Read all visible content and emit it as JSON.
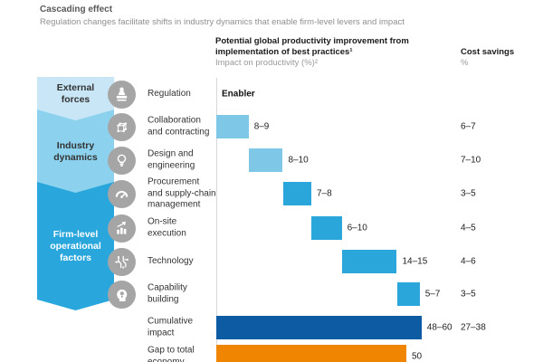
{
  "header": {
    "title": "Cascading effect",
    "subtitle": "Regulation changes facilitate shifts in industry dynamics that enable firm-level levers and impact"
  },
  "columns": {
    "productivity": {
      "title_line1": "Potential global productivity improvement from",
      "title_line2": "implementation of best practices¹",
      "subtitle": "Impact on productivity (%)²"
    },
    "cost": {
      "title": "Cost savings",
      "subtitle": "%"
    }
  },
  "groups": [
    {
      "label": "External forces"
    },
    {
      "label": "Industry dynamics"
    },
    {
      "label": "Firm-level operational factors"
    }
  ],
  "palette": {
    "light": "#7EC7E6",
    "medium": "#2BA6DA",
    "dark": "#0D5BA3",
    "orange": "#F08502",
    "group_external": "#C8E6F5",
    "group_industry": "#8CD2EE",
    "group_firm": "#29A7DC",
    "icon_gray": "#A5A5A5"
  },
  "rows": [
    {
      "label": "Regulation",
      "label_lines": [
        "Regulation"
      ],
      "icon": "stamp-icon",
      "value_label": "Enabler",
      "cost": ""
    },
    {
      "label": "Collaboration and contracting",
      "label_lines": [
        "Collaboration",
        "and contracting"
      ],
      "icon": "network-cube-icon",
      "value_label": "8–9",
      "bar": {
        "start": 0,
        "value": 8.5,
        "tone": "light"
      },
      "cost": "6–7"
    },
    {
      "label": "Design and engineering",
      "label_lines": [
        "Design and",
        "engineering"
      ],
      "icon": "lightbulb-icon",
      "value_label": "8–10",
      "bar": {
        "start": 8.5,
        "value": 9,
        "tone": "light"
      },
      "cost": "7–10"
    },
    {
      "label": "Procurement and supply-chain management",
      "label_lines": [
        "Procurement",
        "and supply-chain",
        "management"
      ],
      "icon": "gauge-icon",
      "value_label": "7–8",
      "bar": {
        "start": 17.5,
        "value": 7.5,
        "tone": "medium"
      },
      "cost": "3–5"
    },
    {
      "label": "On-site execution",
      "label_lines": [
        "On-site",
        "execution"
      ],
      "icon": "bar-chart-icon",
      "value_label": "6–10",
      "bar": {
        "start": 25,
        "value": 8,
        "tone": "medium"
      },
      "cost": "4–5"
    },
    {
      "label": "Technology",
      "label_lines": [
        "Technology"
      ],
      "icon": "circuit-icon",
      "value_label": "14–15",
      "bar": {
        "start": 33,
        "value": 14.5,
        "tone": "medium"
      },
      "cost": "4–6"
    },
    {
      "label": "Capability building",
      "label_lines": [
        "Capability",
        "building"
      ],
      "icon": "mind-icon",
      "value_label": "5–7",
      "bar": {
        "start": 47.5,
        "value": 6,
        "tone": "medium"
      },
      "cost": "3–5"
    },
    {
      "label": "Cumulative impact",
      "label_lines": [
        "Cumulative",
        "impact"
      ],
      "icon": null,
      "value_label": "48–60",
      "bar": {
        "start": 0,
        "value": 54,
        "tone": "dark"
      },
      "cost": "27–38"
    },
    {
      "label": "Gap to total economy",
      "label_lines": [
        "Gap to total",
        "economy"
      ],
      "icon": null,
      "value_label": "50",
      "bar": {
        "start": 0,
        "value": 50,
        "tone": "orange"
      },
      "cost": ""
    }
  ],
  "chart_data": {
    "type": "bar",
    "subtype": "waterfall",
    "orientation": "horizontal",
    "title": "Potential global productivity improvement from implementation of best practices¹",
    "value_axis_label": "Impact on productivity (%)²",
    "secondary_metric_label": "Cost savings %",
    "categories": [
      "Regulation",
      "Collaboration and contracting",
      "Design and engineering",
      "Procurement and supply-chain management",
      "On-site execution",
      "Technology",
      "Capability building",
      "Cumulative impact",
      "Gap to total economy"
    ],
    "series": [
      {
        "name": "Impact on productivity (%)",
        "labels": [
          "Enabler",
          "8–9",
          "8–10",
          "7–8",
          "6–10",
          "14–15",
          "5–7",
          "48–60",
          "50"
        ],
        "ranges": [
          null,
          [
            8,
            9
          ],
          [
            8,
            10
          ],
          [
            7,
            8
          ],
          [
            6,
            10
          ],
          [
            14,
            15
          ],
          [
            5,
            7
          ],
          [
            48,
            60
          ],
          [
            50,
            50
          ]
        ]
      },
      {
        "name": "Cost savings %",
        "labels": [
          "",
          "6–7",
          "7–10",
          "3–5",
          "4–5",
          "4–6",
          "3–5",
          "27–38",
          ""
        ]
      }
    ],
    "group_mapping": [
      {
        "group": "External forces",
        "rows": [
          "Regulation"
        ]
      },
      {
        "group": "Industry dynamics",
        "rows": [
          "Collaboration and contracting",
          "Design and engineering"
        ]
      },
      {
        "group": "Firm-level operational factors",
        "rows": [
          "Procurement and supply-chain management",
          "On-site execution",
          "Technology",
          "Capability building"
        ]
      }
    ],
    "legend": "none",
    "grid": "off",
    "value_axis_range": [
      0,
      60
    ]
  }
}
